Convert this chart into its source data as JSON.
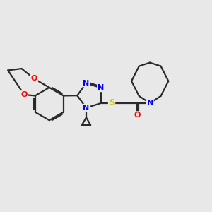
{
  "bg_color": "#e8e8e8",
  "bond_color": "#2a2a2a",
  "N_color": "#0000ff",
  "O_color": "#ff0000",
  "S_color": "#cccc00",
  "font_size": 8.0,
  "lw": 1.6,
  "xlim": [
    0,
    10
  ],
  "ylim": [
    0,
    10
  ]
}
